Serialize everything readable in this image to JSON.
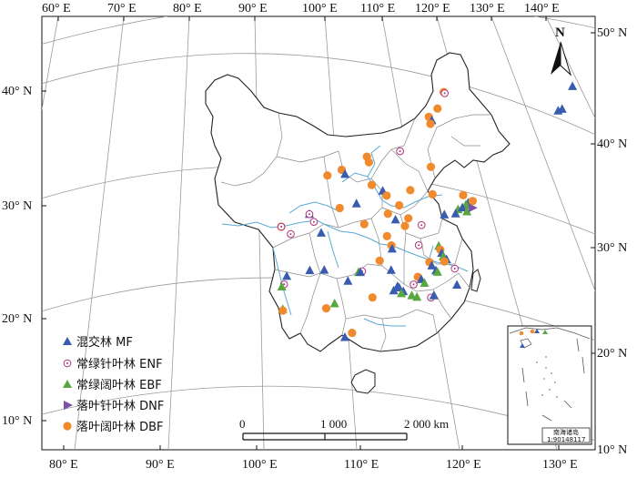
{
  "top_ticks": [
    "60° E",
    "70° E",
    "80° E",
    "90° E",
    "100° E",
    "110° E",
    "120° E",
    "130° E",
    "140° E"
  ],
  "bottom_ticks": [
    "80° E",
    "90° E",
    "100° E",
    "110° E",
    "120° E",
    "130° E"
  ],
  "left_ticks": [
    "40° N",
    "30° N",
    "20° N",
    "10° N"
  ],
  "right_ticks": [
    "50° N",
    "40° N",
    "30° N",
    "20° N",
    "10° N"
  ],
  "north_label": "N",
  "legend": [
    {
      "key": "MF",
      "label": "混交林 MF",
      "shape": "triangle",
      "color": "#3a5cae"
    },
    {
      "key": "ENF",
      "label": "常绿针叶林 ENF",
      "shape": "ring",
      "color": "#b0327a"
    },
    {
      "key": "EBF",
      "label": "常绿阔叶林 EBF",
      "shape": "triangle",
      "color": "#58a83f"
    },
    {
      "key": "DNF",
      "label": "落叶针叶林 DNF",
      "shape": "right-triangle",
      "color": "#7a52a8"
    },
    {
      "key": "DBF",
      "label": "落叶阔叶林 DBF",
      "shape": "circle",
      "color": "#f08a2c"
    }
  ],
  "scale": {
    "labels": [
      "0",
      "1 000",
      "2 000 km"
    ]
  },
  "inset": {
    "title": "南海诸岛",
    "scale": "1:90148117"
  },
  "map_data": {
    "sites": [
      {
        "type": "DNF",
        "lon": 125.9,
        "lat": 51.5
      },
      {
        "type": "MF",
        "lon": 128.0,
        "lat": 42.4
      },
      {
        "type": "MF",
        "lon": 127.6,
        "lat": 40.3
      },
      {
        "type": "MF",
        "lon": 127.3,
        "lat": 40.1
      },
      {
        "type": "DBF",
        "lon": 117.3,
        "lat": 40.5
      },
      {
        "type": "ENF",
        "lon": 117.4,
        "lat": 40.4
      },
      {
        "type": "DBF",
        "lon": 116.9,
        "lat": 39.0
      },
      {
        "type": "DBF",
        "lon": 116.2,
        "lat": 38.2
      },
      {
        "type": "MF",
        "lon": 116.5,
        "lat": 37.9
      },
      {
        "type": "DBF",
        "lon": 116.4,
        "lat": 37.6
      },
      {
        "type": "ENF",
        "lon": 113.8,
        "lat": 35.0
      },
      {
        "type": "DBF",
        "lon": 110.7,
        "lat": 34.4
      },
      {
        "type": "DBF",
        "lon": 110.9,
        "lat": 33.9
      },
      {
        "type": "DBF",
        "lon": 116.8,
        "lat": 33.8
      },
      {
        "type": "DBF",
        "lon": 108.3,
        "lat": 33.2
      },
      {
        "type": "MF",
        "lon": 108.6,
        "lat": 32.8
      },
      {
        "type": "DBF",
        "lon": 106.9,
        "lat": 32.7
      },
      {
        "type": "DBF",
        "lon": 111.2,
        "lat": 31.9
      },
      {
        "type": "MF",
        "lon": 112.3,
        "lat": 31.4
      },
      {
        "type": "DBF",
        "lon": 112.7,
        "lat": 31.0
      },
      {
        "type": "DBF",
        "lon": 115.0,
        "lat": 31.6
      },
      {
        "type": "DBF",
        "lon": 117.2,
        "lat": 31.4
      },
      {
        "type": "DBF",
        "lon": 120.2,
        "lat": 31.6
      },
      {
        "type": "MF",
        "lon": 120.8,
        "lat": 31.0
      },
      {
        "type": "DBF",
        "lon": 121.2,
        "lat": 31.2
      },
      {
        "type": "EBF",
        "lon": 120.6,
        "lat": 30.8
      },
      {
        "type": "EBF",
        "lon": 119.9,
        "lat": 30.3
      },
      {
        "type": "MF",
        "lon": 120.3,
        "lat": 30.5
      },
      {
        "type": "EBF",
        "lon": 120.8,
        "lat": 30.2
      },
      {
        "type": "DNF",
        "lon": 121.3,
        "lat": 30.6
      },
      {
        "type": "MF",
        "lon": 119.7,
        "lat": 29.9
      },
      {
        "type": "MF",
        "lon": 118.6,
        "lat": 29.7
      },
      {
        "type": "DBF",
        "lon": 112.9,
        "lat": 29.4
      },
      {
        "type": "DBF",
        "lon": 114.0,
        "lat": 30.2
      },
      {
        "type": "MF",
        "lon": 109.7,
        "lat": 30.2
      },
      {
        "type": "DBF",
        "lon": 108.0,
        "lat": 29.8
      },
      {
        "type": "MF",
        "lon": 104.9,
        "lat": 29.3
      },
      {
        "type": "ENF",
        "lon": 104.9,
        "lat": 29.3
      },
      {
        "type": "DBF",
        "lon": 101.9,
        "lat": 28.3
      },
      {
        "type": "ENF",
        "lon": 101.9,
        "lat": 28.3
      },
      {
        "type": "ENF",
        "lon": 102.8,
        "lat": 27.6
      },
      {
        "type": "ENF",
        "lon": 105.3,
        "lat": 28.6
      },
      {
        "type": "MF",
        "lon": 106.0,
        "lat": 27.6
      },
      {
        "type": "DBF",
        "lon": 110.5,
        "lat": 28.4
      },
      {
        "type": "MF",
        "lon": 113.7,
        "lat": 28.9
      },
      {
        "type": "DBF",
        "lon": 115.0,
        "lat": 29.1
      },
      {
        "type": "DBF",
        "lon": 114.7,
        "lat": 28.4
      },
      {
        "type": "ENF",
        "lon": 116.4,
        "lat": 28.6
      },
      {
        "type": "DBF",
        "lon": 112.9,
        "lat": 27.4
      },
      {
        "type": "DBF",
        "lon": 113.4,
        "lat": 26.6
      },
      {
        "type": "MF",
        "lon": 113.5,
        "lat": 26.3
      },
      {
        "type": "ENF",
        "lon": 116.3,
        "lat": 26.8
      },
      {
        "type": "EBF",
        "lon": 118.4,
        "lat": 26.9
      },
      {
        "type": "DBF",
        "lon": 118.6,
        "lat": 26.6
      },
      {
        "type": "MF",
        "lon": 118.8,
        "lat": 26.3
      },
      {
        "type": "EBF",
        "lon": 119.0,
        "lat": 26.0
      },
      {
        "type": "MF",
        "lon": 119.4,
        "lat": 25.8
      },
      {
        "type": "DBF",
        "lon": 119.2,
        "lat": 25.6
      },
      {
        "type": "DBF",
        "lon": 117.6,
        "lat": 25.4
      },
      {
        "type": "MF",
        "lon": 117.9,
        "lat": 25.1
      },
      {
        "type": "MF",
        "lon": 118.4,
        "lat": 24.7
      },
      {
        "type": "EBF",
        "lon": 118.6,
        "lat": 24.6
      },
      {
        "type": "ENF",
        "lon": 120.4,
        "lat": 25.1
      },
      {
        "type": "MF",
        "lon": 120.9,
        "lat": 23.7
      },
      {
        "type": "DBF",
        "lon": 112.2,
        "lat": 25.2
      },
      {
        "type": "ENF",
        "lon": 110.3,
        "lat": 24.2
      },
      {
        "type": "EBF",
        "lon": 109.9,
        "lat": 24.1
      },
      {
        "type": "MF",
        "lon": 110.1,
        "lat": 24.1
      },
      {
        "type": "MF",
        "lon": 113.5,
        "lat": 24.4
      },
      {
        "type": "DBF",
        "lon": 116.5,
        "lat": 24.0
      },
      {
        "type": "MF",
        "lon": 116.9,
        "lat": 23.8
      },
      {
        "type": "EBF",
        "lon": 117.3,
        "lat": 23.5
      },
      {
        "type": "ENF",
        "lon": 116.1,
        "lat": 23.3
      },
      {
        "type": "EBF",
        "lon": 116.0,
        "lat": 22.3
      },
      {
        "type": "EBF",
        "lon": 116.6,
        "lat": 22.2
      },
      {
        "type": "ENF",
        "lon": 118.2,
        "lat": 22.3
      },
      {
        "type": "MF",
        "lon": 118.5,
        "lat": 22.5
      },
      {
        "type": "MF",
        "lon": 106.1,
        "lat": 24.3
      },
      {
        "type": "MF",
        "lon": 104.5,
        "lat": 24.3
      },
      {
        "type": "MF",
        "lon": 101.9,
        "lat": 23.9
      },
      {
        "type": "ENF",
        "lon": 101.5,
        "lat": 23.2
      },
      {
        "type": "EBF",
        "lon": 101.2,
        "lat": 23.0
      },
      {
        "type": "MF",
        "lon": 108.7,
        "lat": 23.3
      },
      {
        "type": "MF",
        "lon": 114.3,
        "lat": 23.0
      },
      {
        "type": "MF",
        "lon": 113.9,
        "lat": 22.6
      },
      {
        "type": "MF",
        "lon": 114.5,
        "lat": 22.9
      },
      {
        "type": "MF",
        "lon": 115.0,
        "lat": 22.6
      },
      {
        "type": "EBF",
        "lon": 114.8,
        "lat": 22.4
      },
      {
        "type": "EBF",
        "lon": 107.1,
        "lat": 21.3
      },
      {
        "type": "EBF",
        "lon": 101.0,
        "lat": 21.0
      },
      {
        "type": "DBF",
        "lon": 101.0,
        "lat": 20.9
      },
      {
        "type": "DBF",
        "lon": 111.5,
        "lat": 21.9
      },
      {
        "type": "DBF",
        "lon": 106.1,
        "lat": 20.9
      },
      {
        "type": "DBF",
        "lon": 109.1,
        "lat": 18.7
      },
      {
        "type": "MF",
        "lon": 108.2,
        "lat": 18.3
      }
    ]
  }
}
